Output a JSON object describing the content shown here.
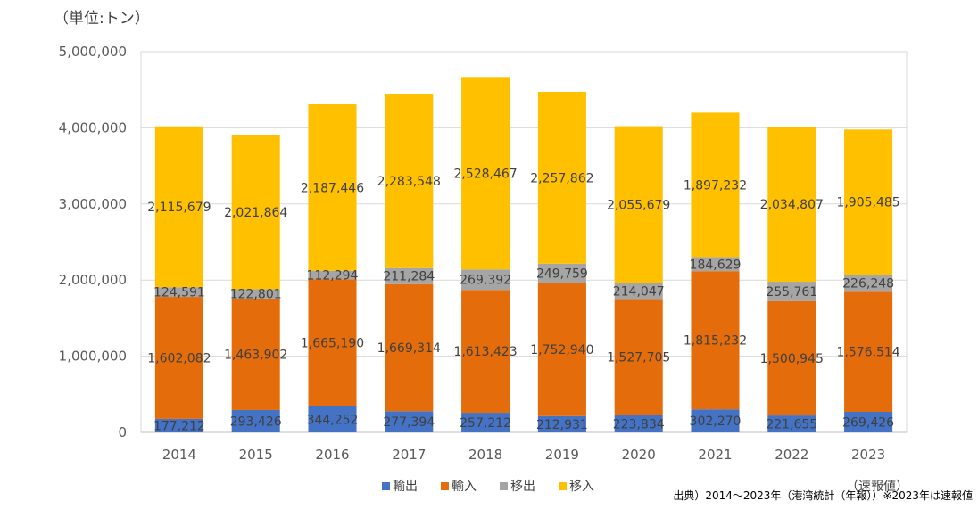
{
  "unit_label": "（単位:トン）",
  "source_note": "出典）2014～2023年（港湾統計（年報））※2023年は速報値",
  "preliminary_note": "（速報値）",
  "chart_data": {
    "type": "bar",
    "stacked": true,
    "categories": [
      "2014",
      "2015",
      "2016",
      "2017",
      "2018",
      "2019",
      "2020",
      "2021",
      "2022",
      "2023"
    ],
    "series": [
      {
        "name": "輸出",
        "color": "#4472C4",
        "values": [
          177212,
          293426,
          344252,
          277394,
          257212,
          212931,
          223834,
          302270,
          221655,
          269426
        ],
        "labels": [
          "177,212",
          "293,426",
          "344,252",
          "277,394",
          "257,212",
          "212,931",
          "223,834",
          "302,270",
          "221,655",
          "269,426"
        ]
      },
      {
        "name": "輸入",
        "color": "#E46C0A",
        "values": [
          1602082,
          1463902,
          1665190,
          1669314,
          1613423,
          1752940,
          1527705,
          1815232,
          1500945,
          1576514
        ],
        "labels": [
          "1,602,082",
          "1,463,902",
          "1,665,190",
          "1,669,314",
          "1,613,423",
          "1,752,940",
          "1,527,705",
          "1,815,232",
          "1,500,945",
          "1,576,514"
        ]
      },
      {
        "name": "移出",
        "color": "#A5A5A5",
        "values": [
          124591,
          122801,
          112294,
          211284,
          269392,
          249759,
          214047,
          184629,
          255761,
          226248
        ],
        "labels": [
          "124,591",
          "122,801",
          "112,294",
          "211,284",
          "269,392",
          "249,759",
          "214,047",
          "184,629",
          "255,761",
          "226,248"
        ]
      },
      {
        "name": "移入",
        "color": "#FFC000",
        "values": [
          2115679,
          2021864,
          2187446,
          2283548,
          2528467,
          2257862,
          2055679,
          1897232,
          2034807,
          1905485
        ],
        "labels": [
          "2,115,679",
          "2,021,864",
          "2,187,446",
          "2,283,548",
          "2,528,467",
          "2,257,862",
          "2,055,679",
          "1,897,232",
          "2,034,807",
          "1,905,485"
        ]
      }
    ],
    "y_ticks": [
      {
        "value": 0,
        "label": "0"
      },
      {
        "value": 1000000,
        "label": "1,000,000"
      },
      {
        "value": 2000000,
        "label": "2,000,000"
      },
      {
        "value": 3000000,
        "label": "3,000,000"
      },
      {
        "value": 4000000,
        "label": "4,000,000"
      },
      {
        "value": 5000000,
        "label": "5,000,000"
      }
    ],
    "ylim": [
      0,
      5000000
    ],
    "grid": true,
    "legend_position": "bottom"
  }
}
